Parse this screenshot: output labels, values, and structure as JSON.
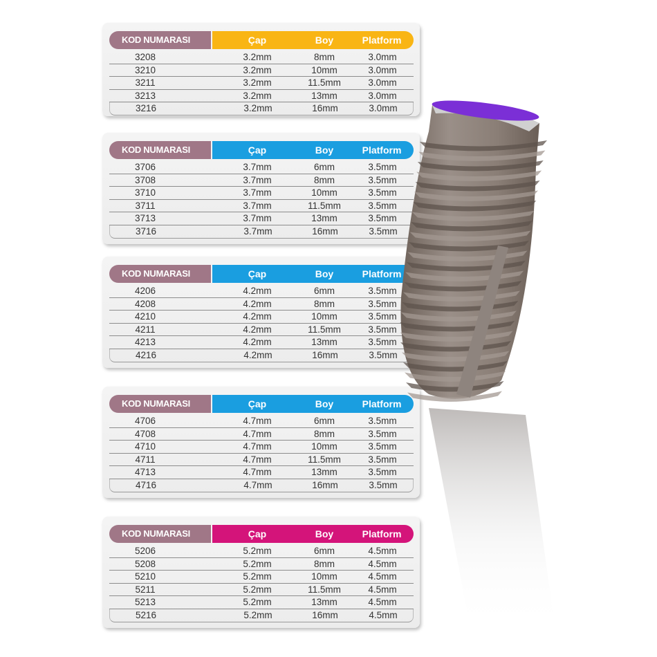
{
  "headers": {
    "code": "KOD NUMARASI",
    "diameter": "Çap",
    "length": "Boy",
    "platform": "Platform"
  },
  "tables": [
    {
      "accent": "#f9b514",
      "rows": [
        [
          "3208",
          "3.2mm",
          "8mm",
          "3.0mm"
        ],
        [
          "3210",
          "3.2mm",
          "10mm",
          "3.0mm"
        ],
        [
          "3211",
          "3.2mm",
          "11.5mm",
          "3.0mm"
        ],
        [
          "3213",
          "3.2mm",
          "13mm",
          "3.0mm"
        ],
        [
          "3216",
          "3.2mm",
          "16mm",
          "3.0mm"
        ]
      ]
    },
    {
      "accent": "#1a9ee0",
      "rows": [
        [
          "3706",
          "3.7mm",
          "6mm",
          "3.5mm"
        ],
        [
          "3708",
          "3.7mm",
          "8mm",
          "3.5mm"
        ],
        [
          "3710",
          "3.7mm",
          "10mm",
          "3.5mm"
        ],
        [
          "3711",
          "3.7mm",
          "11.5mm",
          "3.5mm"
        ],
        [
          "3713",
          "3.7mm",
          "13mm",
          "3.5mm"
        ],
        [
          "3716",
          "3.7mm",
          "16mm",
          "3.5mm"
        ]
      ]
    },
    {
      "accent": "#1a9ee0",
      "rows": [
        [
          "4206",
          "4.2mm",
          "6mm",
          "3.5mm"
        ],
        [
          "4208",
          "4.2mm",
          "8mm",
          "3.5mm"
        ],
        [
          "4210",
          "4.2mm",
          "10mm",
          "3.5mm"
        ],
        [
          "4211",
          "4.2mm",
          "11.5mm",
          "3.5mm"
        ],
        [
          "4213",
          "4.2mm",
          "13mm",
          "3.5mm"
        ],
        [
          "4216",
          "4.2mm",
          "16mm",
          "3.5mm"
        ]
      ]
    },
    {
      "accent": "#1a9ee0",
      "rows": [
        [
          "4706",
          "4.7mm",
          "6mm",
          "3.5mm"
        ],
        [
          "4708",
          "4.7mm",
          "8mm",
          "3.5mm"
        ],
        [
          "4710",
          "4.7mm",
          "10mm",
          "3.5mm"
        ],
        [
          "4711",
          "4.7mm",
          "11.5mm",
          "3.5mm"
        ],
        [
          "4713",
          "4.7mm",
          "13mm",
          "3.5mm"
        ],
        [
          "4716",
          "4.7mm",
          "16mm",
          "3.5mm"
        ]
      ]
    },
    {
      "accent": "#d4147a",
      "rows": [
        [
          "5206",
          "5.2mm",
          "6mm",
          "4.5mm"
        ],
        [
          "5208",
          "5.2mm",
          "8mm",
          "4.5mm"
        ],
        [
          "5210",
          "5.2mm",
          "10mm",
          "4.5mm"
        ],
        [
          "5211",
          "5.2mm",
          "11.5mm",
          "4.5mm"
        ],
        [
          "5213",
          "5.2mm",
          "13mm",
          "4.5mm"
        ],
        [
          "5216",
          "5.2mm",
          "16mm",
          "4.5mm"
        ]
      ]
    }
  ],
  "colors": {
    "code_header": "#a07787",
    "implant_top": "#7b2fd6",
    "implant_body": "#8a7d74"
  },
  "image": {
    "icon": "dental-implant-icon"
  }
}
